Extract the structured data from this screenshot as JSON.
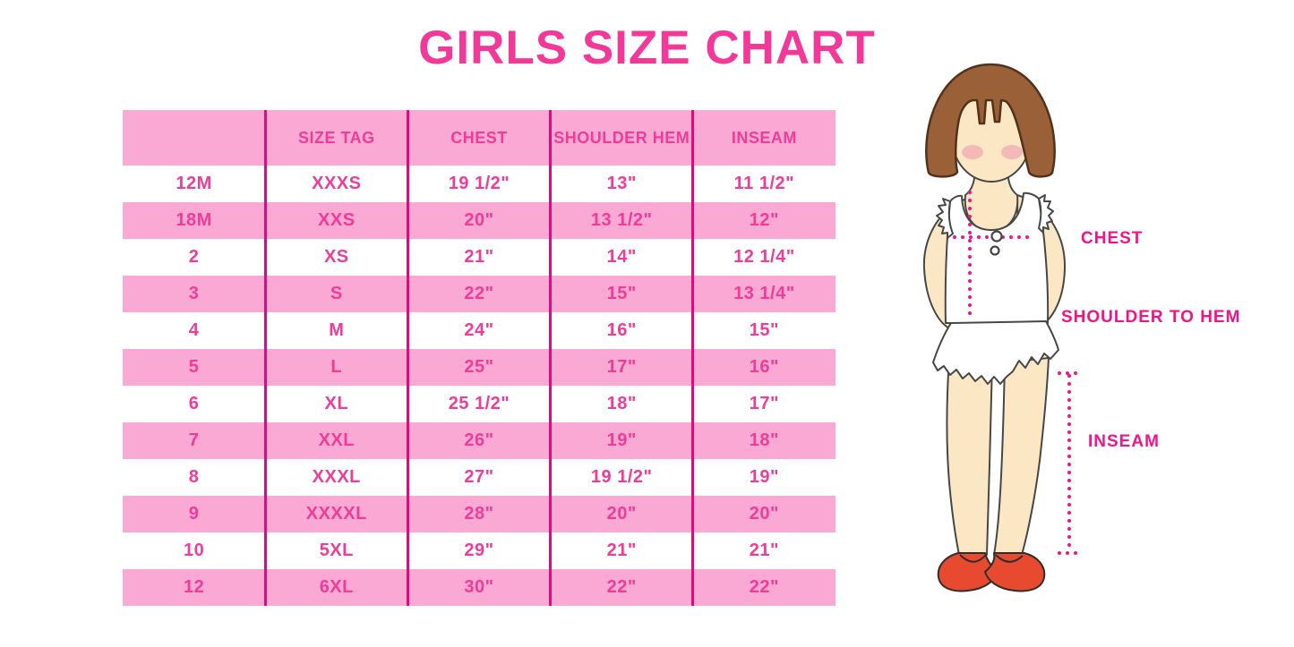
{
  "title": "GIRLS SIZE CHART",
  "colors": {
    "title": "#F2399A",
    "row_pink": "#F9A9D4",
    "table_text": "#EE3C99",
    "separator_line": "#DC0B80",
    "measurement_pink": "#F0138A",
    "hair_brown": "#9A6139",
    "skin": "#FBE7C3",
    "shoe_red": "#E84A2F"
  },
  "table": {
    "headers": [
      "",
      "SIZE TAG",
      "CHEST",
      "SHOULDER HEM",
      "INSEAM"
    ],
    "rows": [
      [
        "12M",
        "XXXS",
        "19 1/2\"",
        "13\"",
        "11 1/2\""
      ],
      [
        "18M",
        "XXS",
        "20\"",
        "13 1/2\"",
        "12\""
      ],
      [
        "2",
        "XS",
        "21\"",
        "14\"",
        "12 1/4\""
      ],
      [
        "3",
        "S",
        "22\"",
        "15\"",
        "13 1/4\""
      ],
      [
        "4",
        "M",
        "24\"",
        "16\"",
        "15\""
      ],
      [
        "5",
        "L",
        "25\"",
        "17\"",
        "16\""
      ],
      [
        "6",
        "XL",
        "25 1/2\"",
        "18\"",
        "17\""
      ],
      [
        "7",
        "XXL",
        "26\"",
        "19\"",
        "18\""
      ],
      [
        "8",
        "XXXL",
        "27\"",
        "19 1/2\"",
        "19\""
      ],
      [
        "9",
        "XXXXL",
        "28\"",
        "20\"",
        "20\""
      ],
      [
        "10",
        "5XL",
        "29\"",
        "21\"",
        "21\""
      ],
      [
        "12",
        "6XL",
        "30\"",
        "22\"",
        "22\""
      ]
    ]
  },
  "figure": {
    "labels": {
      "chest": "CHEST",
      "shoulder_to_hem": "SHOULDER TO HEM",
      "inseam": "INSEAM"
    }
  }
}
